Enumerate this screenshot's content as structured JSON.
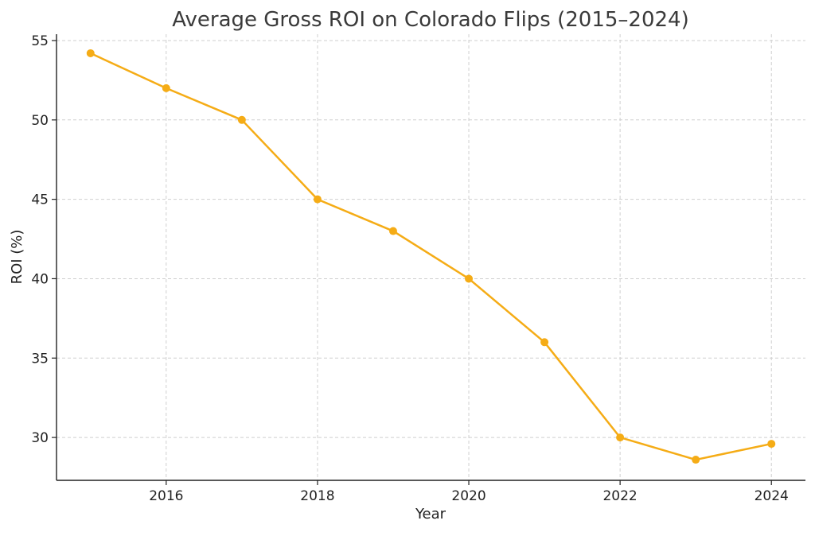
{
  "chart_data": {
    "type": "line",
    "title": "Average Gross ROI on Colorado Flips (2015–2024)",
    "xlabel": "Year",
    "ylabel": "ROI (%)",
    "x": [
      2015,
      2016,
      2017,
      2018,
      2019,
      2020,
      2021,
      2022,
      2023,
      2024
    ],
    "series": [
      {
        "values": [
          54.2,
          52.0,
          50.0,
          45.0,
          43.0,
          40.0,
          36.0,
          30.0,
          28.6,
          29.6
        ],
        "color": "#f5ac16"
      }
    ],
    "xticks": [
      2016,
      2018,
      2020,
      2022,
      2024
    ],
    "yticks": [
      30,
      35,
      40,
      45,
      50,
      55
    ],
    "xlim": [
      2014.55,
      2024.45
    ],
    "ylim": [
      27.3,
      55.4
    ],
    "grid": true,
    "legend": "none"
  }
}
